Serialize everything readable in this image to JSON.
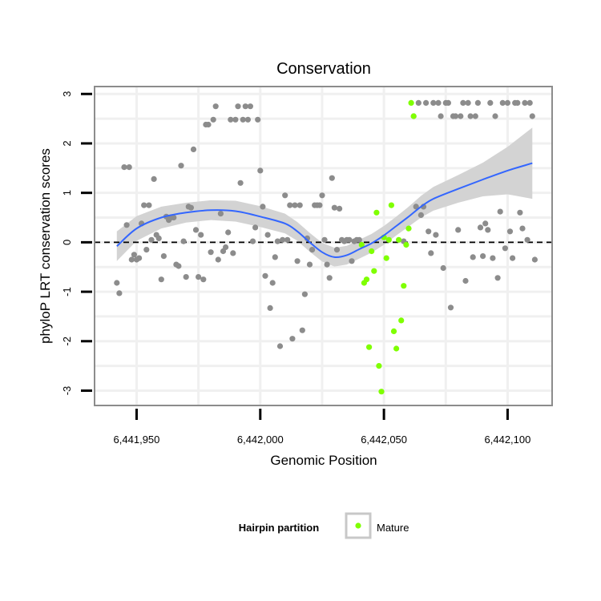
{
  "chart_data": {
    "type": "scatter",
    "title": "Conservation",
    "xlabel": "Genomic Position",
    "ylabel": "phyloP LRT conservation scores",
    "xlim": [
      6441933,
      6442118
    ],
    "ylim": [
      -3.3,
      3.15
    ],
    "x_ticks": [
      6441950,
      6442000,
      6442050,
      6442100
    ],
    "x_tick_labels": [
      "6,441,950",
      "6,442,000",
      "6,442,050",
      "6,442,100"
    ],
    "y_ticks": [
      -3,
      -2,
      -1,
      0,
      1,
      2,
      3
    ],
    "y_tick_labels": [
      "-3",
      "-2",
      "-1",
      "0",
      "1",
      "2",
      "3"
    ],
    "reference_line": {
      "y": 0,
      "style": "dashed"
    },
    "legend": {
      "title": "Hairpin partition",
      "entries": [
        {
          "label": "Mature",
          "color": "#7fff00"
        }
      ]
    },
    "colors": {
      "other": "#8c8c8c",
      "mature": "#7fff00",
      "smooth": "#3366ff",
      "band": "#d3d3d3",
      "panel_border": "#8c8c8c",
      "grid": "#f0f0f0"
    },
    "series": [
      {
        "name": "Other",
        "points": [
          [
            6441942,
            -0.82
          ],
          [
            6441943,
            -1.03
          ],
          [
            6441945,
            1.52
          ],
          [
            6441946,
            0.35
          ],
          [
            6441947,
            1.52
          ],
          [
            6441948,
            -0.35
          ],
          [
            6441949,
            -0.25
          ],
          [
            6441950,
            -0.35
          ],
          [
            6441951,
            -0.32
          ],
          [
            6441952,
            0.38
          ],
          [
            6441953,
            0.75
          ],
          [
            6441954,
            -0.15
          ],
          [
            6441955,
            0.75
          ],
          [
            6441956,
            0.05
          ],
          [
            6441957,
            1.28
          ],
          [
            6441958,
            0.15
          ],
          [
            6441959,
            0.08
          ],
          [
            6441960,
            -0.75
          ],
          [
            6441961,
            -0.28
          ],
          [
            6441962,
            0.52
          ],
          [
            6441963,
            0.45
          ],
          [
            6441964,
            0.5
          ],
          [
            6441965,
            0.5
          ],
          [
            6441966,
            -0.45
          ],
          [
            6441967,
            -0.48
          ],
          [
            6441968,
            1.55
          ],
          [
            6441969,
            0.02
          ],
          [
            6441970,
            -0.7
          ],
          [
            6441971,
            0.72
          ],
          [
            6441972,
            0.7
          ],
          [
            6441973,
            1.88
          ],
          [
            6441974,
            0.25
          ],
          [
            6441975,
            -0.7
          ],
          [
            6441976,
            0.15
          ],
          [
            6441977,
            -0.75
          ],
          [
            6441978,
            2.38
          ],
          [
            6441979,
            2.38
          ],
          [
            6441980,
            -0.2
          ],
          [
            6441981,
            2.48
          ],
          [
            6441982,
            2.75
          ],
          [
            6441983,
            -0.35
          ],
          [
            6441984,
            0.58
          ],
          [
            6441985,
            -0.18
          ],
          [
            6441986,
            -0.1
          ],
          [
            6441987,
            0.2
          ],
          [
            6441988,
            2.48
          ],
          [
            6441989,
            -0.22
          ],
          [
            6441990,
            2.48
          ],
          [
            6441991,
            2.75
          ],
          [
            6441992,
            1.2
          ],
          [
            6441993,
            2.48
          ],
          [
            6441994,
            2.75
          ],
          [
            6441995,
            2.48
          ],
          [
            6441996,
            2.75
          ],
          [
            6441997,
            0.02
          ],
          [
            6441998,
            0.3
          ],
          [
            6441999,
            2.48
          ],
          [
            6442000,
            1.45
          ],
          [
            6442001,
            0.72
          ],
          [
            6442002,
            -0.68
          ],
          [
            6442003,
            0.15
          ],
          [
            6442004,
            -1.33
          ],
          [
            6442005,
            -0.82
          ],
          [
            6442006,
            -0.3
          ],
          [
            6442007,
            0.02
          ],
          [
            6442008,
            -2.1
          ],
          [
            6442009,
            0.05
          ],
          [
            6442010,
            0.95
          ],
          [
            6442011,
            0.05
          ],
          [
            6442012,
            0.75
          ],
          [
            6442013,
            -1.95
          ],
          [
            6442014,
            0.75
          ],
          [
            6442015,
            -0.38
          ],
          [
            6442016,
            0.75
          ],
          [
            6442017,
            -1.78
          ],
          [
            6442018,
            -1.05
          ],
          [
            6442019,
            0.08
          ],
          [
            6442020,
            -0.45
          ],
          [
            6442021,
            -0.15
          ],
          [
            6442022,
            0.75
          ],
          [
            6442023,
            0.75
          ],
          [
            6442024,
            0.75
          ],
          [
            6442025,
            0.95
          ],
          [
            6442026,
            0.05
          ],
          [
            6442027,
            -0.45
          ],
          [
            6442028,
            -0.72
          ],
          [
            6442029,
            1.3
          ],
          [
            6442030,
            0.7
          ],
          [
            6442031,
            -0.15
          ],
          [
            6442032,
            0.68
          ],
          [
            6442033,
            0.05
          ],
          [
            6442034,
            0.02
          ],
          [
            6442035,
            0.05
          ],
          [
            6442036,
            0.05
          ],
          [
            6442037,
            -0.38
          ],
          [
            6442038,
            0.02
          ],
          [
            6442039,
            0.05
          ],
          [
            6442040,
            0.05
          ],
          [
            6442058,
            0.02
          ],
          [
            6442062,
            2.55
          ],
          [
            6442063,
            0.72
          ],
          [
            6442064,
            2.82
          ],
          [
            6442065,
            0.55
          ],
          [
            6442066,
            0.72
          ],
          [
            6442067,
            2.82
          ],
          [
            6442068,
            0.22
          ],
          [
            6442069,
            -0.22
          ],
          [
            6442070,
            2.82
          ],
          [
            6442071,
            0.15
          ],
          [
            6442072,
            2.82
          ],
          [
            6442073,
            2.55
          ],
          [
            6442074,
            -0.52
          ],
          [
            6442075,
            2.82
          ],
          [
            6442076,
            2.82
          ],
          [
            6442077,
            -1.32
          ],
          [
            6442078,
            2.55
          ],
          [
            6442079,
            2.55
          ],
          [
            6442080,
            0.25
          ],
          [
            6442081,
            2.55
          ],
          [
            6442082,
            2.82
          ],
          [
            6442083,
            -0.78
          ],
          [
            6442084,
            2.82
          ],
          [
            6442085,
            2.55
          ],
          [
            6442086,
            -0.3
          ],
          [
            6442087,
            2.55
          ],
          [
            6442088,
            2.82
          ],
          [
            6442089,
            0.3
          ],
          [
            6442090,
            -0.28
          ],
          [
            6442091,
            0.38
          ],
          [
            6442092,
            0.25
          ],
          [
            6442093,
            2.82
          ],
          [
            6442094,
            -0.32
          ],
          [
            6442095,
            2.55
          ],
          [
            6442096,
            -0.72
          ],
          [
            6442097,
            0.62
          ],
          [
            6442098,
            2.82
          ],
          [
            6442099,
            -0.12
          ],
          [
            6442100,
            2.82
          ],
          [
            6442101,
            0.22
          ],
          [
            6442102,
            -0.32
          ],
          [
            6442103,
            2.82
          ],
          [
            6442104,
            2.82
          ],
          [
            6442105,
            0.6
          ],
          [
            6442106,
            0.28
          ],
          [
            6442107,
            2.82
          ],
          [
            6442108,
            0.05
          ],
          [
            6442109,
            2.82
          ],
          [
            6442110,
            2.55
          ],
          [
            6442111,
            -0.35
          ]
        ]
      },
      {
        "name": "Mature",
        "points": [
          [
            6442041,
            -0.05
          ],
          [
            6442042,
            -0.82
          ],
          [
            6442043,
            -0.75
          ],
          [
            6442044,
            -2.12
          ],
          [
            6442045,
            -0.18
          ],
          [
            6442046,
            -0.58
          ],
          [
            6442047,
            0.6
          ],
          [
            6442048,
            -2.5
          ],
          [
            6442049,
            -3.02
          ],
          [
            6442050,
            0.1
          ],
          [
            6442051,
            -0.32
          ],
          [
            6442052,
            0.05
          ],
          [
            6442053,
            0.75
          ],
          [
            6442054,
            -1.8
          ],
          [
            6442055,
            -2.15
          ],
          [
            6442056,
            0.05
          ],
          [
            6442057,
            -1.58
          ],
          [
            6442058,
            -0.88
          ],
          [
            6442059,
            -0.05
          ],
          [
            6442060,
            0.28
          ],
          [
            6442061,
            2.82
          ],
          [
            6442062,
            2.55
          ]
        ]
      }
    ],
    "smooth": {
      "method": "loess",
      "x": [
        6441942,
        6441950,
        6441960,
        6441970,
        6441980,
        6441990,
        6442000,
        6442010,
        6442015,
        6442020,
        6442025,
        6442030,
        6442035,
        6442040,
        6442045,
        6442050,
        6442055,
        6442060,
        6442065,
        6442070,
        6442080,
        6442090,
        6442100,
        6442110
      ],
      "y": [
        -0.08,
        0.28,
        0.5,
        0.6,
        0.65,
        0.63,
        0.52,
        0.38,
        0.22,
        0.0,
        -0.2,
        -0.3,
        -0.26,
        -0.14,
        -0.02,
        0.14,
        0.33,
        0.52,
        0.72,
        0.88,
        1.08,
        1.27,
        1.45,
        1.6
      ],
      "se": [
        0.3,
        0.25,
        0.22,
        0.2,
        0.2,
        0.21,
        0.21,
        0.2,
        0.19,
        0.19,
        0.19,
        0.19,
        0.19,
        0.19,
        0.19,
        0.19,
        0.19,
        0.2,
        0.22,
        0.24,
        0.28,
        0.34,
        0.48,
        0.72
      ]
    }
  }
}
